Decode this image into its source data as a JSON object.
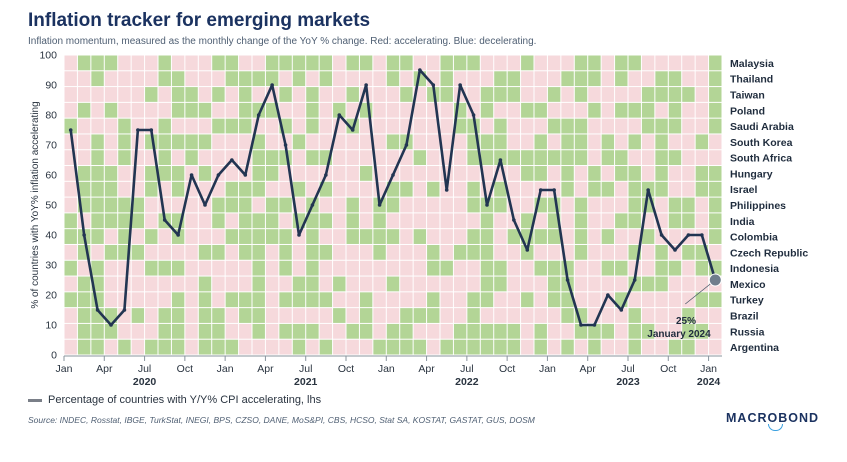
{
  "header": {
    "title": "Inflation tracker for emerging markets",
    "subtitle": "Inflation momentum, measured as the monthly change of the YoY % change. Red: accelerating. Blue: decelerating."
  },
  "legend": {
    "label": "Percentage of countries with Y/Y% CPI accelerating, lhs"
  },
  "source": "Source: INDEC, Rosstat, IBGE, TurkStat, INEGI, BPS, CZSO, DANE, MoS&PI, CBS, HCSO, Stat SA, KOSTAT, GASTAT, GUS, DOSM",
  "logo": "MACROBOND",
  "colors": {
    "accelerating": "#f6d9dc",
    "decelerating": "#b3d596",
    "line": "#223552",
    "marker": "#6f7e8c",
    "background": "#ffffff"
  },
  "chart_data": {
    "type": "line",
    "ylabel": "% of countries with YoY% inflation accelerating",
    "ylim": [
      0,
      100
    ],
    "yticks": [
      0,
      10,
      20,
      30,
      40,
      50,
      60,
      70,
      80,
      90,
      100
    ],
    "x_tick_labels": [
      {
        "label": "Jan",
        "index": 0
      },
      {
        "label": "Apr",
        "index": 3
      },
      {
        "label": "Jul",
        "index": 6,
        "year": "2020"
      },
      {
        "label": "Oct",
        "index": 9
      },
      {
        "label": "Jan",
        "index": 12
      },
      {
        "label": "Apr",
        "index": 15
      },
      {
        "label": "Jul",
        "index": 18,
        "year": "2021"
      },
      {
        "label": "Oct",
        "index": 21
      },
      {
        "label": "Jan",
        "index": 24
      },
      {
        "label": "Apr",
        "index": 27
      },
      {
        "label": "Jul",
        "index": 30,
        "year": "2022"
      },
      {
        "label": "Oct",
        "index": 33
      },
      {
        "label": "Jan",
        "index": 36
      },
      {
        "label": "Apr",
        "index": 39
      },
      {
        "label": "Jul",
        "index": 42,
        "year": "2023"
      },
      {
        "label": "Oct",
        "index": 45
      },
      {
        "label": "Jan",
        "index": 48,
        "year": "2024"
      }
    ],
    "x": [
      "2020-01",
      "2020-02",
      "2020-03",
      "2020-04",
      "2020-05",
      "2020-06",
      "2020-07",
      "2020-08",
      "2020-09",
      "2020-10",
      "2020-11",
      "2020-12",
      "2021-01",
      "2021-02",
      "2021-03",
      "2021-04",
      "2021-05",
      "2021-06",
      "2021-07",
      "2021-08",
      "2021-09",
      "2021-10",
      "2021-11",
      "2021-12",
      "2022-01",
      "2022-02",
      "2022-03",
      "2022-04",
      "2022-05",
      "2022-06",
      "2022-07",
      "2022-08",
      "2022-09",
      "2022-10",
      "2022-11",
      "2022-12",
      "2023-01",
      "2023-02",
      "2023-03",
      "2023-04",
      "2023-05",
      "2023-06",
      "2023-07",
      "2023-08",
      "2023-09",
      "2023-10",
      "2023-11",
      "2023-12",
      "2024-01"
    ],
    "series": [
      {
        "name": "Percentage of countries with Y/Y% CPI accelerating, lhs",
        "values": [
          75,
          40,
          15,
          10,
          15,
          75,
          75,
          45,
          40,
          60,
          50,
          60,
          65,
          60,
          80,
          90,
          70,
          40,
          50,
          60,
          80,
          75,
          90,
          50,
          60,
          70,
          95,
          90,
          55,
          90,
          80,
          50,
          65,
          45,
          35,
          55,
          55,
          25,
          10,
          10,
          20,
          15,
          25,
          55,
          40,
          35,
          40,
          40,
          25
        ]
      }
    ],
    "countries": [
      "Malaysia",
      "Thailand",
      "Taiwan",
      "Poland",
      "Saudi Arabia",
      "South Korea",
      "South Africa",
      "Hungary",
      "Israel",
      "Philippines",
      "India",
      "Colombia",
      "Czech Republic",
      "Indonesia",
      "Mexico",
      "Turkey",
      "Brazil",
      "Russia",
      "Argentina"
    ],
    "heatmap_legend": {
      "1": "accelerating",
      "0": "decelerating"
    },
    "heatmap": [
      "1000111011100110000010010011000111011100100111110",
      "1101111001110000101011110101011100111000101100110",
      "1111110100101011010110111010011000110101111000010",
      "1010111100011000110101011111101011001110100010110",
      "0111011011100011010110111111100101110001111000110",
      "1101010000011101101111110011110001101001010101101",
      "1101011010111100010011111101110000000001001100111",
      "1000110001011100111111011111111111001010100101100",
      "1000110101110001101011110010110101111010010001100",
      "1000001111100010010110100111110001100101110010010",
      "0100001001101000100010101111111011010101100110010",
      "0001010101110000010110000101110010000101011011110",
      "1010001111001001010011101110100011011101110101001",
      "0101110001111101010111111110011001100011001100100",
      "1001111111011101100101110111111001110011110001111",
      "0001111101010001000011011110110011010011101111100",
      "1000101001001001111101011000110111111001110111011",
      "1000111001001101000110010011100000101100010011001",
      "1001010001000111101011100001000000101010110110011"
    ],
    "annotation": {
      "value": "25%",
      "label": "January 2024",
      "index": 48
    }
  }
}
